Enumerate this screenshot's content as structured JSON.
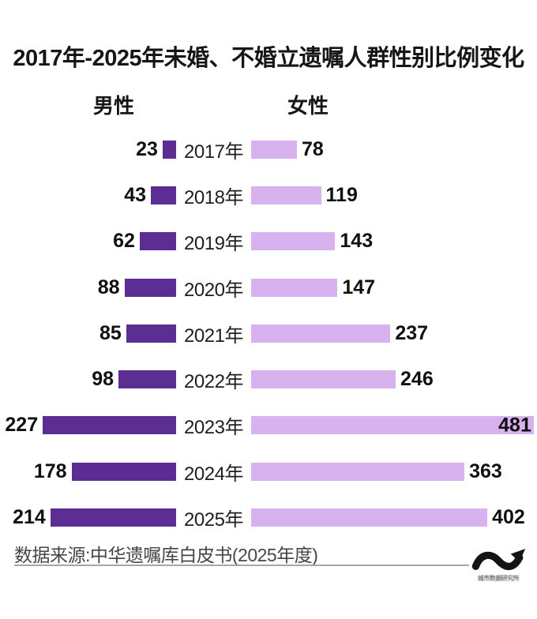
{
  "title": "2017年-2025年未婚、不婚立遗嘱人群性别比例变化",
  "legend": {
    "male": "男性",
    "female": "女性"
  },
  "colors": {
    "male_bar": "#5c2d92",
    "female_bar": "#d8b1ef",
    "title_text": "#161616",
    "number_text": "#101010",
    "footer_text": "#464646",
    "rule": "#a6a6a6"
  },
  "chart_data": {
    "type": "bar",
    "orientation": "horizontal-diverging",
    "title": "2017年-2025年未婚、不婚立遗嘱人群性别比例变化",
    "categories": [
      "2017年",
      "2018年",
      "2019年",
      "2020年",
      "2021年",
      "2022年",
      "2023年",
      "2024年",
      "2025年"
    ],
    "series": [
      {
        "name": "男性",
        "values": [
          23,
          43,
          62,
          88,
          85,
          98,
          227,
          178,
          214
        ]
      },
      {
        "name": "女性",
        "values": [
          78,
          119,
          143,
          147,
          237,
          246,
          481,
          363,
          402
        ]
      }
    ],
    "value_labels_shown": true,
    "legend_position": "top",
    "grid": false,
    "value_range": [
      0,
      481
    ]
  },
  "footer": {
    "source": "数据来源:中华遗嘱库白皮书(2025年度)"
  },
  "watermark": {
    "caption_illegible": "城市数据研究所"
  }
}
